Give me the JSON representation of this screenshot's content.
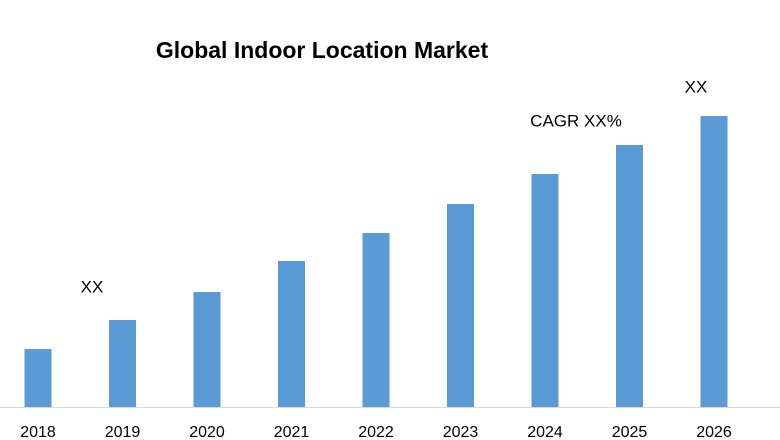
{
  "chart_data": {
    "type": "bar",
    "title": "Global Indoor Location Market",
    "categories": [
      "2018",
      "2019",
      "2020",
      "2021",
      "2022",
      "2023",
      "2024",
      "2025",
      "2026"
    ],
    "values": [
      58,
      87,
      115,
      146,
      174,
      203,
      233,
      262,
      291
    ],
    "color": "#5b9bd5",
    "annotations": [
      "XX",
      "CAGR XX%",
      "XX"
    ]
  }
}
